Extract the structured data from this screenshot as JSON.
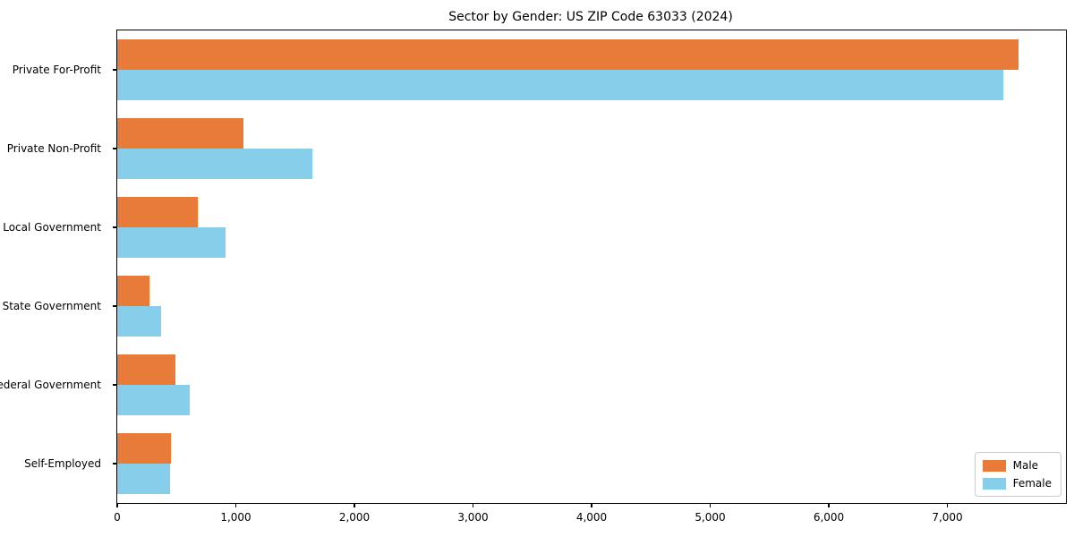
{
  "figure": {
    "background": "#ffffff",
    "text_color": "#000000"
  },
  "chart_data": {
    "type": "bar",
    "orientation": "horizontal",
    "title": "Sector by Gender: US ZIP Code 63033 (2024)",
    "xlabel": "",
    "ylabel": "",
    "grid": false,
    "legend_position": "lower right",
    "categories": [
      "Private For-Profit",
      "Private Non-Profit",
      "Local Government",
      "State Government",
      "Federal Government",
      "Self-Employed"
    ],
    "series": [
      {
        "name": "Male",
        "color": "#e87b3a",
        "values": [
          7600,
          1065,
          680,
          270,
          490,
          455
        ]
      },
      {
        "name": "Female",
        "color": "#87ceeb",
        "values": [
          7470,
          1645,
          910,
          370,
          610,
          445
        ]
      }
    ],
    "xlim": [
      0,
      8000
    ],
    "xticks": [
      0,
      1000,
      2000,
      3000,
      4000,
      5000,
      6000,
      7000
    ],
    "xtick_labels": [
      "0",
      "1,000",
      "2,000",
      "3,000",
      "4,000",
      "5,000",
      "6,000",
      "7,000"
    ]
  }
}
